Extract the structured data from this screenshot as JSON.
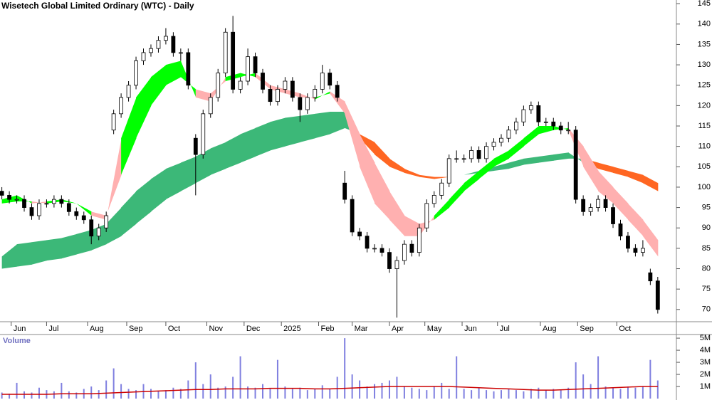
{
  "chart_data": {
    "type": "candlestick",
    "title": "Wisetech Global Limited Ordinary (WTC) - Daily",
    "x": [
      1,
      5,
      9,
      13,
      17,
      21,
      25,
      29,
      33,
      37,
      41,
      45,
      49,
      53,
      57,
      61,
      65,
      69,
      73,
      77,
      81,
      85,
      89,
      93,
      97,
      101,
      105,
      109,
      113,
      117,
      121,
      125,
      129,
      133,
      137,
      141,
      145,
      149,
      153,
      157,
      161,
      165,
      169,
      173,
      177,
      181,
      185,
      189,
      193,
      197,
      201,
      205,
      209,
      213,
      217,
      221,
      225,
      229,
      233,
      237,
      241,
      245,
      249,
      253,
      257,
      261,
      265,
      269,
      273,
      277,
      281,
      285,
      289,
      293,
      297,
      301,
      305,
      309,
      313,
      317,
      321,
      325,
      329,
      333,
      337,
      341,
      345,
      349,
      353
    ],
    "open": [
      99,
      98,
      97,
      97,
      95,
      93,
      96,
      96,
      97,
      96,
      94,
      93,
      92,
      88,
      90,
      114,
      118,
      122,
      125,
      131,
      133,
      134,
      136,
      137,
      133,
      133,
      112,
      108,
      118,
      122,
      128,
      138,
      124,
      126,
      132,
      128,
      124,
      121,
      124,
      126,
      122,
      119,
      122,
      124,
      128,
      125,
      101,
      97,
      89,
      88,
      85,
      85,
      84,
      80,
      82,
      86,
      84,
      90,
      96,
      98,
      101,
      107,
      107,
      107,
      109,
      107,
      110,
      111,
      112,
      114,
      116,
      119,
      120,
      116,
      116,
      115,
      114,
      114,
      97,
      94,
      95,
      97,
      95,
      91,
      88,
      85,
      84,
      79,
      77
    ],
    "high": [
      100,
      99,
      98,
      98,
      96,
      97,
      97,
      98,
      98,
      97,
      95,
      94,
      93,
      91,
      94,
      119,
      123,
      126,
      132,
      134,
      135,
      137,
      139,
      138,
      134,
      134,
      113,
      119,
      123,
      129,
      139,
      142,
      127,
      134,
      133,
      129,
      125,
      125,
      127,
      127,
      123,
      123,
      125,
      130,
      129,
      126,
      104,
      98,
      90,
      89,
      86,
      86,
      85,
      83,
      87,
      87,
      91,
      97,
      99,
      102,
      108,
      109,
      108,
      110,
      110,
      111,
      112,
      113,
      115,
      117,
      120,
      121,
      121,
      117,
      117,
      116,
      116,
      115,
      98,
      96,
      98,
      98,
      96,
      92,
      89,
      86,
      87,
      80,
      78
    ],
    "low": [
      97,
      96,
      96,
      94,
      92,
      92,
      95,
      95,
      95,
      93,
      92,
      91,
      86,
      87,
      89,
      113,
      117,
      121,
      124,
      130,
      132,
      133,
      135,
      132,
      131,
      124,
      98,
      107,
      117,
      121,
      127,
      123,
      123,
      125,
      127,
      123,
      120,
      120,
      123,
      121,
      116,
      118,
      121,
      123,
      124,
      121,
      96,
      88,
      87,
      84,
      84,
      83,
      79,
      68,
      81,
      83,
      83,
      89,
      95,
      97,
      100,
      106,
      106,
      106,
      106,
      106,
      109,
      110,
      111,
      113,
      115,
      118,
      115,
      115,
      114,
      113,
      113,
      96,
      93,
      93,
      94,
      94,
      90,
      87,
      84,
      83,
      83,
      76,
      69
    ],
    "close": [
      98,
      97,
      97,
      95,
      93,
      96,
      96,
      97,
      96,
      94,
      93,
      92,
      88,
      90,
      93,
      118,
      122,
      125,
      131,
      133,
      134,
      136,
      137,
      133,
      133,
      125,
      108,
      118,
      122,
      128,
      138,
      124,
      126,
      132,
      128,
      124,
      121,
      124,
      126,
      122,
      119,
      122,
      124,
      128,
      125,
      122,
      97,
      89,
      88,
      85,
      85,
      84,
      80,
      82,
      86,
      84,
      90,
      96,
      98,
      101,
      107,
      107,
      107,
      109,
      107,
      110,
      111,
      112,
      114,
      116,
      119,
      120,
      116,
      116,
      115,
      114,
      114,
      97,
      94,
      95,
      97,
      95,
      91,
      88,
      85,
      84,
      85,
      77,
      70
    ],
    "up_color": "#ffffff",
    "down_color": "#000000",
    "xlim": [
      0,
      363
    ],
    "xticks": [
      {
        "value": 6,
        "label": "Jun"
      },
      {
        "value": 25,
        "label": "Jul"
      },
      {
        "value": 47,
        "label": "Aug"
      },
      {
        "value": 68,
        "label": "Sep"
      },
      {
        "value": 89,
        "label": "Oct"
      },
      {
        "value": 111,
        "label": "Nov"
      },
      {
        "value": 131,
        "label": "Dec"
      },
      {
        "value": 151,
        "label": "2025"
      },
      {
        "value": 171,
        "label": "Feb"
      },
      {
        "value": 189,
        "label": "Mar"
      },
      {
        "value": 209,
        "label": "Apr"
      },
      {
        "value": 228,
        "label": "May"
      },
      {
        "value": 248,
        "label": "Jun"
      },
      {
        "value": 267,
        "label": "Jul"
      },
      {
        "value": 290,
        "label": "Aug"
      },
      {
        "value": 310,
        "label": "Sep"
      },
      {
        "value": 331,
        "label": "Oct"
      }
    ],
    "ylim": [
      67,
      145.9
    ],
    "yticks": [
      70,
      75,
      80,
      85,
      90,
      95,
      100,
      105,
      110,
      115,
      120,
      125,
      130,
      135,
      140,
      145
    ],
    "ribbon_x": [
      1,
      9,
      17,
      25,
      33,
      41,
      49,
      57,
      65,
      73,
      81,
      89,
      97,
      105,
      113,
      121,
      129,
      137,
      145,
      153,
      161,
      169,
      177,
      185,
      193,
      201,
      209,
      217,
      225,
      233,
      241,
      249,
      257,
      265,
      273,
      281,
      289,
      297,
      305,
      313,
      321,
      329,
      337,
      345,
      353
    ],
    "ribbons": [
      {
        "fast": [
          83,
          86,
          86.5,
          87,
          87.5,
          88.5,
          89.5,
          91,
          95,
          99,
          102,
          104.5,
          106,
          107.5,
          109.5,
          111,
          113,
          114.5,
          116,
          117,
          117.5,
          118,
          118.5,
          118.5,
          112,
          108,
          105,
          103.5,
          102.5,
          102,
          102.5,
          103,
          104,
          105,
          106,
          107,
          107.5,
          108,
          108.5,
          106,
          104.5,
          103.5,
          102.5,
          101,
          99
        ],
        "slow": [
          80,
          80.5,
          81,
          82,
          82.5,
          83.5,
          84.5,
          86,
          88,
          91,
          94,
          97,
          99,
          101,
          103,
          104.5,
          106,
          107.5,
          109,
          110,
          111,
          112,
          113,
          114.5,
          113,
          111,
          107,
          104.5,
          103,
          102.5,
          102.5,
          103,
          103.5,
          104,
          104.5,
          105.5,
          106,
          106.5,
          107,
          107,
          106,
          105,
          104,
          103,
          101
        ],
        "up_color": "#3cb878",
        "down_color": "#ff6622"
      },
      {
        "fast": [
          97,
          98,
          96,
          96.5,
          97,
          96,
          93,
          92,
          112,
          122,
          127,
          130,
          131,
          122,
          121,
          127,
          128,
          127,
          124,
          123,
          122,
          122,
          123,
          118,
          105,
          96,
          92,
          88,
          88,
          93,
          97,
          101,
          104,
          107,
          109,
          112,
          115,
          115,
          114,
          105,
          99,
          96,
          92,
          88,
          83
        ],
        "slow": [
          96,
          96.5,
          96.5,
          96,
          96.5,
          96,
          94,
          93,
          103,
          112,
          120,
          125,
          127,
          124,
          123,
          126,
          127,
          128,
          125,
          124,
          123,
          121.5,
          123.5,
          121,
          113,
          106,
          99,
          93,
          91,
          92,
          95,
          99,
          102,
          105,
          107,
          110,
          113,
          114,
          114.5,
          110,
          104,
          100,
          96,
          92,
          87
        ],
        "up_color": "#00ff00",
        "down_color": "#ffb0b0"
      }
    ],
    "volume": {
      "label": "Volume",
      "values": [
        500000,
        400000,
        1300000,
        600000,
        500000,
        900000,
        700000,
        600000,
        1300000,
        600000,
        500000,
        800000,
        1000000,
        700000,
        1500000,
        2500000,
        1200000,
        800000,
        700000,
        1200000,
        800000,
        600000,
        700000,
        900000,
        800000,
        1500000,
        3000000,
        1200000,
        2000000,
        900000,
        1000000,
        1800000,
        3500000,
        1000000,
        900000,
        1200000,
        800000,
        3200000,
        1000000,
        800000,
        900000,
        700000,
        800000,
        1100000,
        800000,
        1800000,
        5000000,
        2000000,
        1500000,
        1000000,
        1200000,
        1300000,
        1500000,
        1800000,
        1000000,
        900000,
        800000,
        700000,
        1000000,
        1300000,
        800000,
        3500000,
        800000,
        700000,
        900000,
        700000,
        600000,
        700000,
        800000,
        700000,
        600000,
        800000,
        900000,
        700000,
        800000,
        700000,
        900000,
        3000000,
        2000000,
        1200000,
        3500000,
        1000000,
        900000,
        800000,
        1000000,
        900000,
        1000000,
        3200000,
        1500000
      ],
      "ma_values": [
        350000,
        350000,
        350000,
        350000,
        400000,
        400000,
        400000,
        450000,
        500000,
        550000,
        600000,
        650000,
        700000,
        750000,
        750000,
        800000,
        800000,
        800000,
        850000,
        850000,
        850000,
        800000,
        800000,
        850000,
        900000,
        950000,
        1000000,
        1000000,
        1000000,
        1000000,
        1000000,
        950000,
        900000,
        850000,
        800000,
        750000,
        700000,
        700000,
        750000,
        800000,
        850000,
        900000,
        950000,
        1000000,
        1000000
      ],
      "color": "#8080e0",
      "ma_color": "#cc0000",
      "ylim": [
        0,
        5300000
      ],
      "yticks": [
        {
          "value": 1000000,
          "label": "1M"
        },
        {
          "value": 2000000,
          "label": "2M"
        },
        {
          "value": 3000000,
          "label": "3M"
        },
        {
          "value": 4000000,
          "label": "4M"
        },
        {
          "value": 5000000,
          "label": "5M"
        }
      ]
    }
  }
}
